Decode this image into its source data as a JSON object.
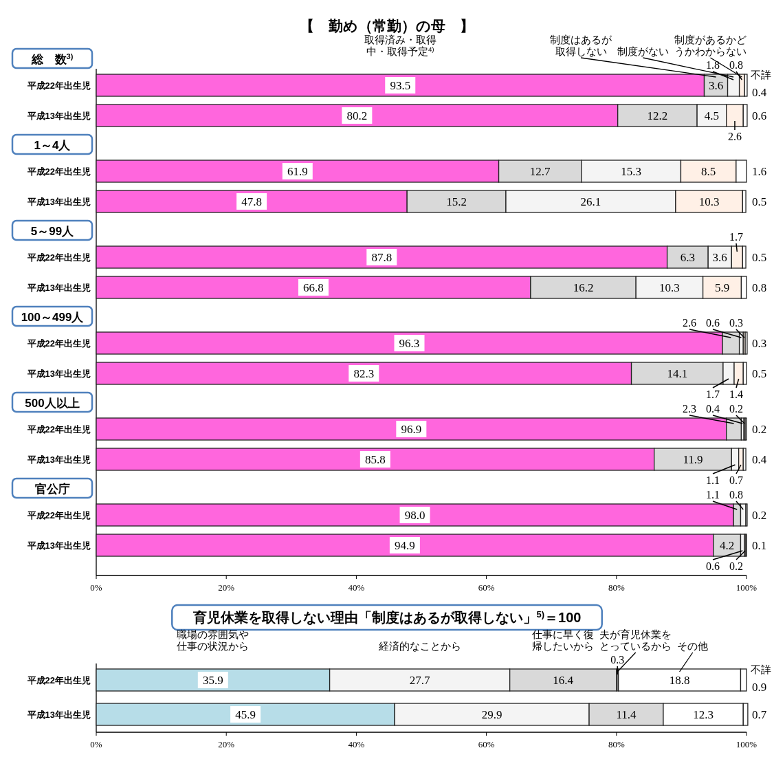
{
  "chart_data": [
    {
      "type": "bar",
      "orientation": "horizontal",
      "stacked": true,
      "title": "【　勤め（常勤）の母　】",
      "categories": [
        "平成22年出生児",
        "平成13年出生児",
        "平成22年出生児",
        "平成13年出生児",
        "平成22年出生児",
        "平成13年出生児",
        "平成22年出生児",
        "平成13年出生児",
        "平成22年出生児",
        "平成13年出生児",
        "平成22年出生児",
        "平成13年出生児"
      ],
      "series": [
        {
          "name": "取得済み・取得中・取得予定$^{4)}$",
          "color": "#ff66dd",
          "values": [
            93.5,
            80.2,
            61.9,
            47.8,
            87.8,
            66.8,
            96.3,
            82.3,
            96.9,
            85.8,
            98.0,
            94.9
          ],
          "value_labels": [
            "93.5",
            "80.2",
            "61.9",
            "47.8",
            "87.8",
            "66.8",
            "96.3",
            "82.3",
            "96.9",
            "85.8",
            "98.0",
            "94.9"
          ]
        },
        {
          "name": "制度はあるが取得しない",
          "color": "#d9d9d9",
          "values": [
            3.6,
            12.2,
            12.7,
            15.2,
            6.3,
            16.2,
            2.6,
            14.1,
            2.3,
            11.9,
            1.1,
            4.2
          ]
        },
        {
          "name": "制度がない",
          "color": "#f4f4f4",
          "values": [
            1.8,
            4.5,
            15.3,
            26.1,
            3.6,
            10.3,
            0.6,
            1.7,
            0.4,
            1.1,
            0.8,
            0.6
          ]
        },
        {
          "name": "制度があるかどうかわからない",
          "color": "#fff0e6",
          "values": [
            0.8,
            2.6,
            8.5,
            10.3,
            1.7,
            5.9,
            0.3,
            1.4,
            0.2,
            0.7,
            null,
            0.2
          ]
        },
        {
          "name": "不詳",
          "color": "#ffffff",
          "values": [
            0.4,
            0.6,
            1.6,
            0.5,
            0.5,
            0.8,
            0.3,
            0.5,
            0.2,
            0.4,
            0.2,
            0.1
          ]
        }
      ],
      "xlim": [
        0,
        100
      ],
      "xticks": [
        {
          "value": 0,
          "label": "0%"
        },
        {
          "value": 20,
          "label": "20%"
        },
        {
          "value": 40,
          "label": "40%"
        },
        {
          "value": 60,
          "label": "60%"
        },
        {
          "value": 80,
          "label": "80%"
        },
        {
          "value": 100,
          "label": "100%"
        }
      ],
      "data_labels": true,
      "annotations": [
        "総　数$^{3)}$",
        "1～4人",
        "5～99人",
        "100～499人",
        "500人以上",
        "官公庁"
      ]
    },
    {
      "type": "bar",
      "orientation": "horizontal",
      "stacked": true,
      "title": "育児休業を取得しない理由「制度はあるが取得しない」$^{5)}$＝100",
      "categories": [
        "平成22年出生児",
        "平成13年出生児"
      ],
      "series": [
        {
          "name": "職場の雰囲気や仕事の状況から",
          "color": "#b7dde8",
          "values": [
            35.9,
            45.9
          ]
        },
        {
          "name": "経済的なことから",
          "color": "#f4f4f4",
          "values": [
            27.7,
            29.9
          ]
        },
        {
          "name": "仕事に早く復帰したいから",
          "color": "#d9d9d9",
          "values": [
            16.4,
            11.4
          ]
        },
        {
          "name": "夫が育児休業をとっているから",
          "color": "#808080",
          "values": [
            0.3,
            null
          ]
        },
        {
          "name": "その他",
          "color": "#ffffff",
          "values": [
            18.8,
            12.3
          ]
        },
        {
          "name": "不詳",
          "color": "#ffffff",
          "values": [
            0.9,
            0.7
          ]
        }
      ],
      "xlim": [
        0,
        100
      ],
      "xticks": [
        {
          "value": 0,
          "label": "0%"
        },
        {
          "value": 20,
          "label": "20%"
        },
        {
          "value": 40,
          "label": "40%"
        },
        {
          "value": 60,
          "label": "60%"
        },
        {
          "value": 80,
          "label": "80%"
        },
        {
          "value": 100,
          "label": "100%"
        }
      ],
      "data_labels": true
    }
  ]
}
